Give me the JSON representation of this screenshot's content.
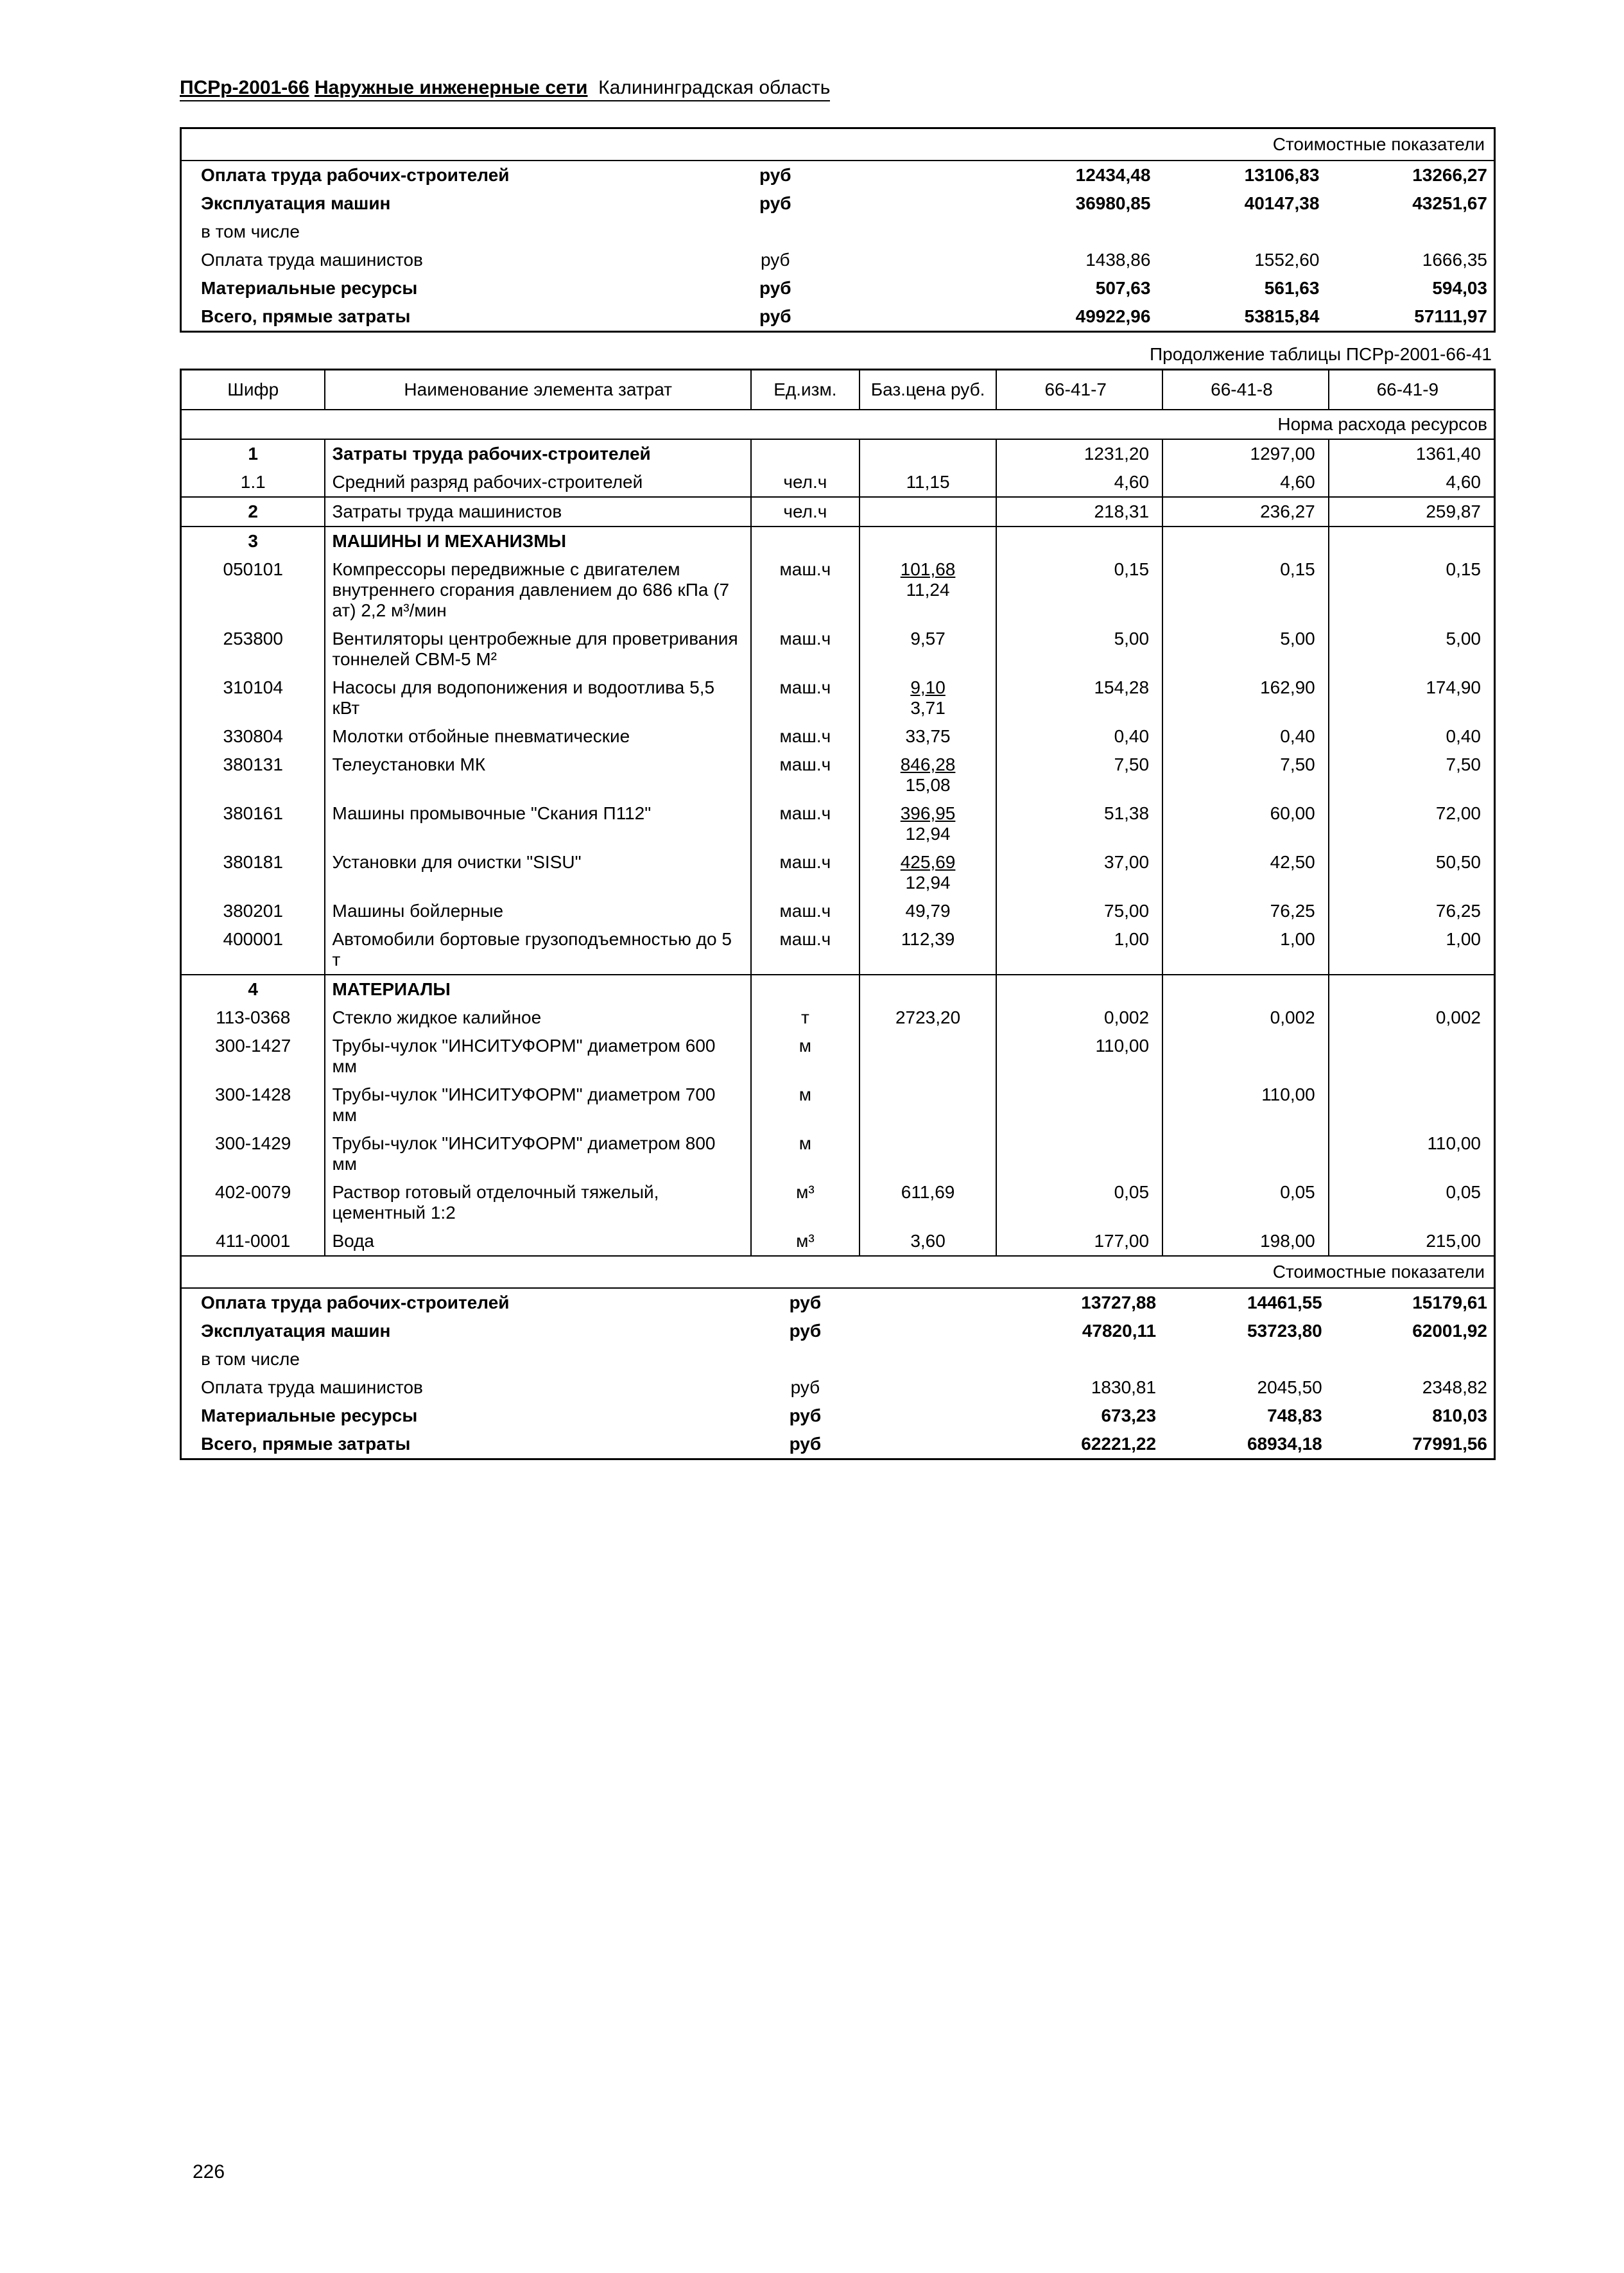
{
  "title": {
    "code": "ПСРр-2001-66",
    "name": "Наружные инженерные сети",
    "region": "Калининградская область"
  },
  "continuation_label": "Продолжение таблицы ПСРр-2001-66-41",
  "cost_header": "Стоимостные показатели",
  "norma_header": "Норма расхода ресурсов",
  "page_number": "226",
  "top_cost": {
    "rows": [
      {
        "label": "Оплата труда рабочих-строителей",
        "unit": "руб",
        "bold": true,
        "v": [
          "12434,48",
          "13106,83",
          "13266,27"
        ]
      },
      {
        "label": "Эксплуатация машин",
        "unit": "руб",
        "bold": true,
        "v": [
          "36980,85",
          "40147,38",
          "43251,67"
        ]
      },
      {
        "label": "в том числе",
        "unit": "",
        "bold": false,
        "v": [
          "",
          "",
          ""
        ]
      },
      {
        "label": "Оплата труда машинистов",
        "unit": "руб",
        "bold": false,
        "v": [
          "1438,86",
          "1552,60",
          "1666,35"
        ]
      },
      {
        "label": "Материальные ресурсы",
        "unit": "руб",
        "bold": true,
        "v": [
          "507,63",
          "561,63",
          "594,03"
        ]
      },
      {
        "label": "Всего, прямые затраты",
        "unit": "руб",
        "bold": true,
        "v": [
          "49922,96",
          "53815,84",
          "57111,97"
        ]
      }
    ]
  },
  "columns": {
    "code": "Шифр",
    "name": "Наименование элемента затрат",
    "unit": "Ед.изм.",
    "base": "Баз.цена руб.",
    "c1": "66-41-7",
    "c2": "66-41-8",
    "c3": "66-41-9"
  },
  "body": [
    {
      "code": "1",
      "name": "Затраты труда рабочих-строителей",
      "unit": "",
      "base": "",
      "v": [
        "1231,20",
        "1297,00",
        "1361,40"
      ],
      "b": true,
      "codeb": true
    },
    {
      "code": "1.1",
      "name": "Средний разряд рабочих-строителей",
      "unit": "чел.ч",
      "base": "11,15",
      "v": [
        "4,60",
        "4,60",
        "4,60"
      ]
    },
    {
      "code": "2",
      "name": "Затраты труда машинистов",
      "unit": "чел.ч",
      "base": "",
      "v": [
        "218,31",
        "236,27",
        "259,87"
      ],
      "codeb": true,
      "sep": true
    },
    {
      "code": "3",
      "name": "МАШИНЫ И МЕХАНИЗМЫ",
      "unit": "",
      "base": "",
      "v": [
        "",
        "",
        ""
      ],
      "b": true,
      "codeb": true,
      "sep": true
    },
    {
      "code": "050101",
      "name": "Компрессоры передвижные с двигателем внутреннего сгорания давлением до 686 кПа (7 ат) 2,2 м³/мин",
      "unit": "маш.ч",
      "base": "101,68",
      "base2": "11,24",
      "u": true,
      "v": [
        "0,15",
        "0,15",
        "0,15"
      ]
    },
    {
      "code": "253800",
      "name": "Вентиляторы центробежные для проветривания тоннелей СВМ-5 М²",
      "unit": "маш.ч",
      "base": "9,57",
      "v": [
        "5,00",
        "5,00",
        "5,00"
      ]
    },
    {
      "code": "310104",
      "name": "Насосы для водопонижения и водоотлива 5,5 кВт",
      "unit": "маш.ч",
      "base": "9,10",
      "base2": "3,71",
      "u": true,
      "v": [
        "154,28",
        "162,90",
        "174,90"
      ]
    },
    {
      "code": "330804",
      "name": "Молотки отбойные пневматические",
      "unit": "маш.ч",
      "base": "33,75",
      "v": [
        "0,40",
        "0,40",
        "0,40"
      ]
    },
    {
      "code": "380131",
      "name": "Телеустановки МК",
      "unit": "маш.ч",
      "base": "846,28",
      "base2": "15,08",
      "u": true,
      "v": [
        "7,50",
        "7,50",
        "7,50"
      ]
    },
    {
      "code": "380161",
      "name": "Машины промывочные \"Скания П112\"",
      "unit": "маш.ч",
      "base": "396,95",
      "base2": "12,94",
      "u": true,
      "v": [
        "51,38",
        "60,00",
        "72,00"
      ]
    },
    {
      "code": "380181",
      "name": "Установки для очистки \"SISU\"",
      "unit": "маш.ч",
      "base": "425,69",
      "base2": "12,94",
      "u": true,
      "v": [
        "37,00",
        "42,50",
        "50,50"
      ]
    },
    {
      "code": "380201",
      "name": "Машины бойлерные",
      "unit": "маш.ч",
      "base": "49,79",
      "v": [
        "75,00",
        "76,25",
        "76,25"
      ]
    },
    {
      "code": "400001",
      "name": "Автомобили бортовые грузоподъемностью до 5 т",
      "unit": "маш.ч",
      "base": "112,39",
      "v": [
        "1,00",
        "1,00",
        "1,00"
      ]
    },
    {
      "code": "4",
      "name": "МАТЕРИАЛЫ",
      "unit": "",
      "base": "",
      "v": [
        "",
        "",
        ""
      ],
      "b": true,
      "codeb": true,
      "sep": true
    },
    {
      "code": "113-0368",
      "name": "Стекло жидкое калийное",
      "unit": "т",
      "base": "2723,20",
      "v": [
        "0,002",
        "0,002",
        "0,002"
      ]
    },
    {
      "code": "300-1427",
      "name": "Трубы-чулок \"ИНСИТУФОРМ\" диаметром 600 мм",
      "unit": "м",
      "base": "",
      "v": [
        "110,00",
        "",
        ""
      ]
    },
    {
      "code": "300-1428",
      "name": "Трубы-чулок \"ИНСИТУФОРМ\" диаметром 700 мм",
      "unit": "м",
      "base": "",
      "v": [
        "",
        "110,00",
        ""
      ]
    },
    {
      "code": "300-1429",
      "name": "Трубы-чулок \"ИНСИТУФОРМ\" диаметром 800 мм",
      "unit": "м",
      "base": "",
      "v": [
        "",
        "",
        "110,00"
      ]
    },
    {
      "code": "402-0079",
      "name": "Раствор готовый отделочный тяжелый, цементный 1:2",
      "unit": "м³",
      "base": "611,69",
      "v": [
        "0,05",
        "0,05",
        "0,05"
      ]
    },
    {
      "code": "411-0001",
      "name": "Вода",
      "unit": "м³",
      "base": "3,60",
      "v": [
        "177,00",
        "198,00",
        "215,00"
      ]
    }
  ],
  "bottom_cost": {
    "rows": [
      {
        "label": "Оплата труда рабочих-строителей",
        "unit": "руб",
        "bold": true,
        "v": [
          "13727,88",
          "14461,55",
          "15179,61"
        ]
      },
      {
        "label": "Эксплуатация машин",
        "unit": "руб",
        "bold": true,
        "v": [
          "47820,11",
          "53723,80",
          "62001,92"
        ]
      },
      {
        "label": "в том числе",
        "unit": "",
        "bold": false,
        "v": [
          "",
          "",
          ""
        ]
      },
      {
        "label": "Оплата труда машинистов",
        "unit": "руб",
        "bold": false,
        "v": [
          "1830,81",
          "2045,50",
          "2348,82"
        ]
      },
      {
        "label": "Материальные ресурсы",
        "unit": "руб",
        "bold": true,
        "v": [
          "673,23",
          "748,83",
          "810,03"
        ]
      },
      {
        "label": "Всего, прямые затраты",
        "unit": "руб",
        "bold": true,
        "v": [
          "62221,22",
          "68934,18",
          "77991,56"
        ]
      }
    ]
  }
}
